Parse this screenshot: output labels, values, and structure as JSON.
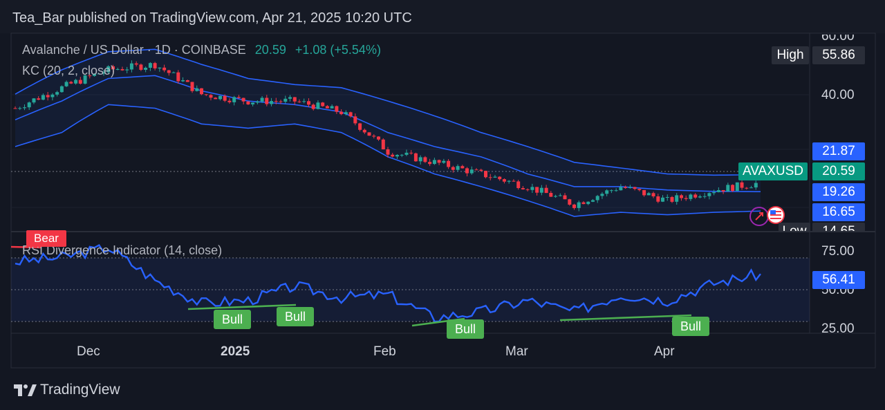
{
  "header": {
    "published": "Tea_Bar published on TradingView.com, Apr 21, 2025 10:20 UTC"
  },
  "legend": {
    "symbol": "Avalanche / US Dollar · 1D · COINBASE",
    "price": "20.59",
    "change": "+1.08 (+5.54%)",
    "kc": "KC (20, 2, close)",
    "rsi": "RSI Divergence Indicator (14, close)"
  },
  "price_axis": {
    "top_partial": "60.00",
    "high_label": "High",
    "high_value": "55.86",
    "tick_40": "40.00",
    "kc_upper": "21.87",
    "pair": "AVAXUSD",
    "last": "20.59",
    "kc_mid": "19.26",
    "kc_lower": "16.65",
    "low_label": "Low",
    "low_value": "14.65"
  },
  "rsi_axis": {
    "tick_75": "75.00",
    "tick_50": "50.00",
    "tick_25": "25.00",
    "current": "56.41"
  },
  "time_axis": [
    "Dec",
    "2025",
    "Feb",
    "Mar",
    "Apr"
  ],
  "tags": {
    "bear": "Bear",
    "bull": "Bull"
  },
  "footer": {
    "brand": "TradingView"
  },
  "colors": {
    "up": "#26a69a",
    "down": "#f23645",
    "band": "#2962ff",
    "rsi": "#2962ff",
    "bull": "#4caf50",
    "bear": "#f23645"
  },
  "chart_data": [
    {
      "type": "candlestick",
      "title": "Avalanche / US Dollar · 1D · COINBASE",
      "ylim": [
        12,
        62
      ],
      "x": [
        "Nov 15",
        "Nov 25",
        "Dec 5",
        "Dec 15",
        "Dec 25",
        "Jan 4",
        "Jan 14",
        "Jan 24",
        "Feb 1",
        "Feb 11",
        "Feb 21",
        "Mar 1",
        "Mar 11",
        "Mar 21",
        "Mar 31",
        "Apr 10",
        "Apr 20"
      ],
      "close": [
        36,
        42,
        48,
        50,
        40,
        38,
        38,
        35,
        26,
        24,
        22,
        20,
        17.5,
        20,
        18,
        19.5,
        20.59
      ],
      "kc_upper": [
        40,
        48,
        55,
        56,
        50,
        45,
        43,
        42,
        38,
        34,
        30,
        27,
        24,
        23,
        22,
        21.8,
        21.87
      ],
      "kc_middle": [
        33,
        38,
        45,
        46,
        41,
        38,
        37,
        35,
        30,
        27,
        25,
        22,
        20,
        20,
        19.5,
        19.3,
        19.26
      ],
      "kc_lower": [
        27,
        30,
        37,
        36,
        32,
        31,
        32,
        30,
        25,
        22,
        20,
        18,
        16,
        16.5,
        16.2,
        16.5,
        16.65
      ]
    },
    {
      "type": "line",
      "title": "RSI Divergence Indicator (14, close)",
      "ylim": [
        15,
        85
      ],
      "x": [
        "Nov 15",
        "Nov 25",
        "Dec 5",
        "Dec 15",
        "Dec 25",
        "Jan 4",
        "Jan 14",
        "Jan 24",
        "Feb 1",
        "Feb 11",
        "Feb 21",
        "Mar 1",
        "Mar 11",
        "Mar 21",
        "Mar 31",
        "Apr 10",
        "Apr 20"
      ],
      "values": [
        65,
        68,
        75,
        52,
        36,
        38,
        48,
        40,
        42,
        26,
        30,
        38,
        30,
        42,
        38,
        50,
        56.41
      ],
      "signals": [
        {
          "label": "Bear",
          "at": "Nov 15"
        },
        {
          "label": "Bull",
          "at": "Jan 2"
        },
        {
          "label": "Bull",
          "at": "Jan 18"
        },
        {
          "label": "Bull",
          "at": "Feb 12"
        },
        {
          "label": "Bull",
          "at": "Apr 5"
        }
      ]
    }
  ]
}
